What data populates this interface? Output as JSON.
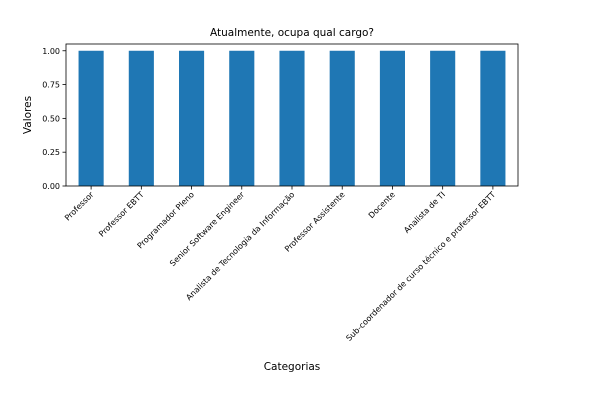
{
  "chart_data": {
    "type": "bar",
    "title": "Atualmente, ocupa qual cargo?",
    "xlabel": "Categorias",
    "ylabel": "Valores",
    "categories": [
      "Professor",
      "Professor EBTT",
      "Programador Pleno",
      "Senior Software Engineer",
      "Analista de Tecnologia da Informação",
      "Professor Assistente",
      "Docente",
      "Analista de TI",
      "Sub-coordenador de curso técnico e professor EBTT"
    ],
    "values": [
      1,
      1,
      1,
      1,
      1,
      1,
      1,
      1,
      1
    ],
    "ylim": [
      0,
      1.05
    ],
    "yticks": [
      "0.00",
      "0.25",
      "0.50",
      "0.75",
      "1.00"
    ],
    "grid": false,
    "legend": "none",
    "bar_color": "#1f77b4"
  }
}
